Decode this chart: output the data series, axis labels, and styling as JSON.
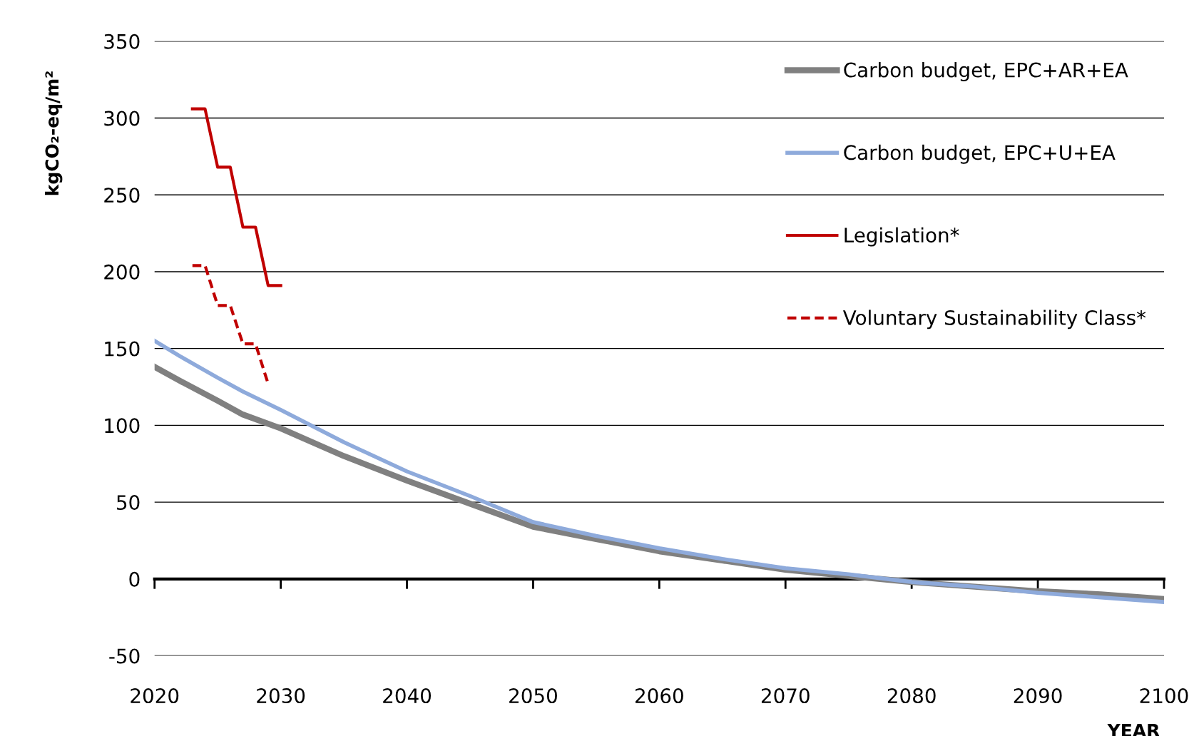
{
  "chart_data": {
    "type": "line",
    "ylabel": "kgCO₂-eq/m²",
    "xlabel": "YEAR",
    "xlim": [
      2020,
      2100
    ],
    "xticks": [
      2020,
      2030,
      2040,
      2050,
      2060,
      2070,
      2080,
      2090,
      2100
    ],
    "ylim": [
      -50,
      350
    ],
    "yticks": [
      -50,
      0,
      50,
      100,
      150,
      200,
      250,
      300,
      350
    ],
    "grid": "y",
    "legend": "top right",
    "series": [
      {
        "name": "Carbon budget, EPC+AR+EA",
        "color": "#808080",
        "line_style": "solid",
        "x": [
          2020,
          2022,
          2025,
          2027,
          2030,
          2035,
          2040,
          2045,
          2050,
          2055,
          2060,
          2065,
          2070,
          2075,
          2080,
          2085,
          2090,
          2095,
          2100
        ],
        "values": [
          138,
          129,
          116,
          107,
          98,
          80,
          64,
          49,
          34,
          26,
          18,
          12,
          6,
          2,
          -2,
          -5,
          -8,
          -10,
          -13
        ]
      },
      {
        "name": "Carbon budget, EPC+U+EA",
        "color": "#8eaadb",
        "line_style": "solid",
        "x": [
          2020,
          2022,
          2025,
          2027,
          2030,
          2035,
          2040,
          2045,
          2050,
          2055,
          2060,
          2065,
          2070,
          2075,
          2080,
          2085,
          2090,
          2095,
          2100
        ],
        "values": [
          155,
          145,
          131,
          122,
          110,
          89,
          70,
          54,
          37,
          28,
          20,
          13,
          7,
          3,
          -2,
          -5,
          -9,
          -12,
          -15
        ]
      },
      {
        "name": "Legislation*",
        "color": "#c00000",
        "line_style": "solid",
        "x": [
          2023,
          2024,
          2025,
          2026,
          2027,
          2028,
          2029,
          2030
        ],
        "values": [
          306,
          306,
          268,
          268,
          229,
          229,
          191,
          191
        ]
      },
      {
        "name": "Voluntary Sustainability Class*",
        "color": "#c00000",
        "line_style": "dashed",
        "x": [
          2023,
          2024,
          2025,
          2026,
          2027,
          2028,
          2029
        ],
        "values": [
          204,
          204,
          178,
          178,
          153,
          153,
          127
        ]
      }
    ]
  }
}
